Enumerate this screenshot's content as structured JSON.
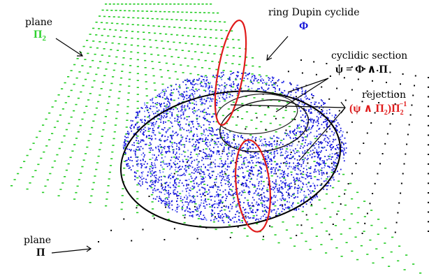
{
  "labels": {
    "plane_pi2": {
      "word": "plane",
      "symbol": "Π",
      "subscript": "2"
    },
    "plane_pi": {
      "word": "plane",
      "symbol": "Π"
    },
    "cyclide": {
      "title": "ring Dupin cyclide",
      "symbol": "Φ"
    },
    "section": {
      "title": "cyclidic section",
      "equation": "ψ = Φ ∧ Π"
    },
    "rejection": {
      "title": "rejection",
      "open": "(",
      "psi": "ψ",
      "wedge": " ∧ ",
      "pi": "Π",
      "sub2a": "2",
      "close": ")",
      "pi2": "Π",
      "sub2b": "2",
      "sup": "−1"
    }
  },
  "colors": {
    "plane_pi2_points": "#22cc22",
    "plane_pi_points": "#000000",
    "cyclide_points": "#1414dc",
    "cyclide_light_points": "#6a7bff",
    "section_curve": "#000000",
    "rejection_curve": "#e01b1b",
    "label_green": "#2ed12e",
    "label_blue": "#1010d8",
    "label_red": "#e01b1b"
  }
}
